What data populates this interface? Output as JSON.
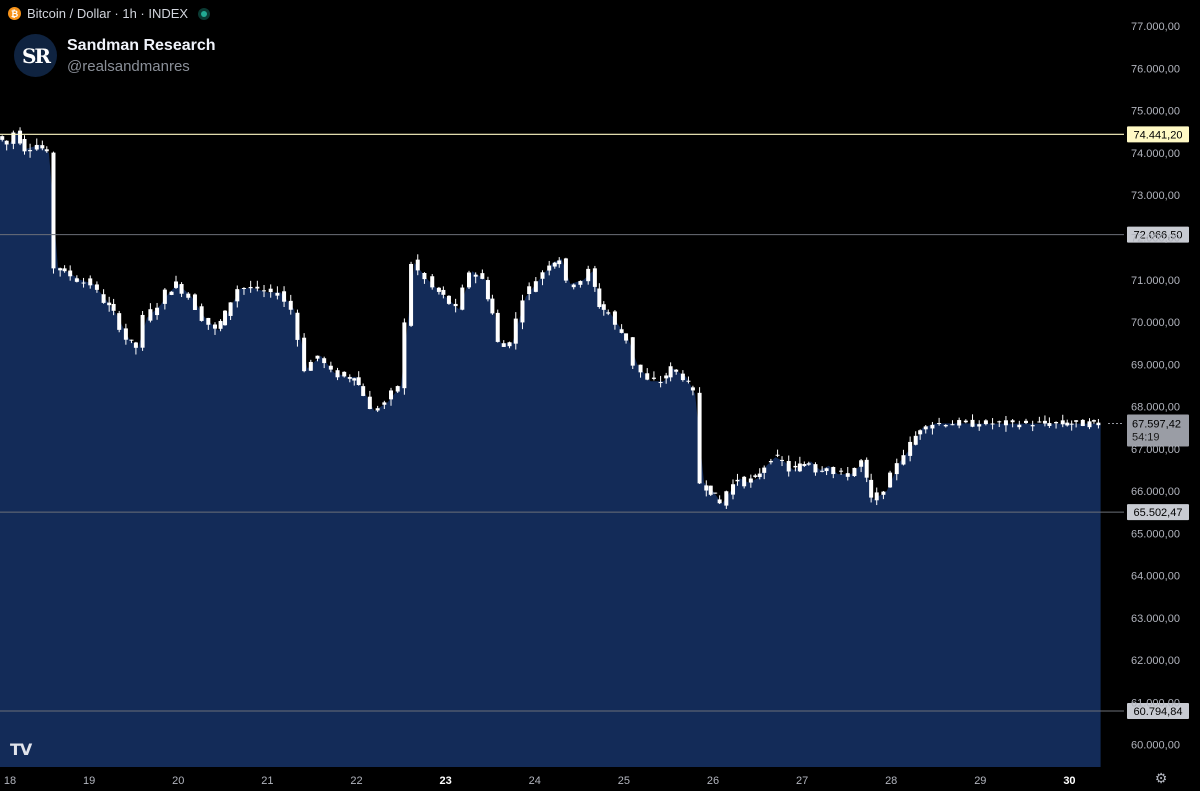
{
  "header": {
    "coin_icon": "bitcoin-icon",
    "coin_glyph": "₿",
    "title": "Bitcoin / Dollar · 1h · INDEX",
    "status_icon": "market-open-dot-icon"
  },
  "brand": {
    "logo_text": "SR",
    "name": "Sandman Research",
    "handle": "@realsandmanres"
  },
  "footer": {
    "watermark": "TV",
    "settings_icon": "gear-icon"
  },
  "colors": {
    "background": "#000000",
    "area_fill": "#132b58",
    "candle": "#ffffff",
    "resistance_line": "#fff9c4",
    "level_line": "#6b6f78",
    "axis_text": "#b2b5be"
  },
  "chart_data": {
    "type": "area",
    "description_series": "BTC/USD 1h close (area) with candlestick wicks",
    "y_axis": {
      "ticks": [
        {
          "value": 77000,
          "label": "77.000,00"
        },
        {
          "value": 76000,
          "label": "76.000,00"
        },
        {
          "value": 75000,
          "label": "75.000,00"
        },
        {
          "value": 74000,
          "label": "74.000,00"
        },
        {
          "value": 73000,
          "label": "73.000,00"
        },
        {
          "value": 72000,
          "label": "72.000,00"
        },
        {
          "value": 71000,
          "label": "71.000,00"
        },
        {
          "value": 70000,
          "label": "70.000,00"
        },
        {
          "value": 69000,
          "label": "69.000,00"
        },
        {
          "value": 68000,
          "label": "68.000,00"
        },
        {
          "value": 67000,
          "label": "67.000,00"
        },
        {
          "value": 66000,
          "label": "66.000,00"
        },
        {
          "value": 65000,
          "label": "65.000,00"
        },
        {
          "value": 64000,
          "label": "64.000,00"
        },
        {
          "value": 63000,
          "label": "63.000,00"
        },
        {
          "value": 62000,
          "label": "62.000,00"
        },
        {
          "value": 61000,
          "label": "61.000,00"
        },
        {
          "value": 60000,
          "label": "60.000,00"
        }
      ],
      "range": [
        59470,
        77620
      ]
    },
    "x_axis": {
      "ticks": [
        {
          "value": 18,
          "label": "18",
          "bold": false
        },
        {
          "value": 19,
          "label": "19",
          "bold": false
        },
        {
          "value": 20,
          "label": "20",
          "bold": false
        },
        {
          "value": 21,
          "label": "21",
          "bold": false
        },
        {
          "value": 22,
          "label": "22",
          "bold": false
        },
        {
          "value": 23,
          "label": "23",
          "bold": true
        },
        {
          "value": 24,
          "label": "24",
          "bold": false
        },
        {
          "value": 25,
          "label": "25",
          "bold": false
        },
        {
          "value": 26,
          "label": "26",
          "bold": false
        },
        {
          "value": 27,
          "label": "27",
          "bold": false
        },
        {
          "value": 28,
          "label": "28",
          "bold": false
        },
        {
          "value": 29,
          "label": "29",
          "bold": false
        },
        {
          "value": 30,
          "label": "30",
          "bold": true
        }
      ],
      "range": [
        18.0,
        30.5
      ]
    },
    "levels": [
      {
        "value": 74441.2,
        "label": "74.441,20",
        "style": "resistance"
      },
      {
        "value": 72066.5,
        "label": "72.066,50",
        "style": "level"
      },
      {
        "value": 65502.47,
        "label": "65.502,47",
        "style": "level"
      },
      {
        "value": 60794.84,
        "label": "60.794,84",
        "style": "level"
      }
    ],
    "current_price": {
      "value": 67597.42,
      "label": "67.597,42",
      "countdown": "54:19"
    },
    "series": [
      {
        "x": [
          18.0,
          18.1,
          18.2,
          18.3,
          18.45,
          18.55,
          18.65,
          18.75,
          18.9,
          19.05,
          19.2,
          19.3,
          19.45,
          19.55,
          19.65,
          19.8,
          19.9,
          20.0,
          20.15,
          20.3,
          20.45,
          20.55,
          20.7,
          20.85,
          21.0,
          21.15,
          21.3,
          21.45,
          21.6,
          21.75,
          21.9,
          22.0,
          22.1,
          22.2,
          22.35,
          22.5,
          22.65,
          22.8,
          22.9,
          23.0,
          23.15,
          23.3,
          23.45,
          23.55,
          23.62,
          23.75,
          23.9,
          24.05,
          24.2,
          24.3,
          24.4,
          24.55,
          24.65,
          24.75,
          24.85,
          24.95,
          25.05,
          25.15,
          25.3,
          25.45,
          25.55,
          25.7,
          25.8,
          25.9,
          26.0,
          26.1,
          26.2,
          26.3,
          26.4,
          26.5,
          26.6,
          26.7,
          26.8,
          26.9,
          27.0,
          27.1,
          27.2,
          27.3,
          27.4,
          27.55,
          27.7,
          27.8,
          27.95,
          28.1,
          28.25,
          28.35,
          28.5,
          28.65,
          28.8,
          28.95,
          29.1,
          29.25,
          29.4,
          29.55,
          29.7,
          29.8,
          29.9,
          29.95,
          30.0,
          30.05,
          30.1,
          30.2,
          30.3,
          30.35
        ],
        "close": [
          74400,
          74200,
          74500,
          74100,
          74200,
          74000,
          71300,
          71200,
          71000,
          70900,
          70500,
          70200,
          69600,
          69400,
          70100,
          70400,
          70700,
          70900,
          70600,
          70100,
          69800,
          70200,
          70800,
          70800,
          70700,
          70700,
          70300,
          68900,
          69200,
          68800,
          68700,
          68700,
          68300,
          67900,
          68100,
          68500,
          71400,
          71000,
          70800,
          70600,
          70300,
          71200,
          71000,
          70200,
          69500,
          69500,
          70600,
          71000,
          71400,
          71500,
          70900,
          71000,
          71200,
          70400,
          70200,
          69900,
          69600,
          69000,
          68600,
          68600,
          68900,
          68700,
          68300,
          66200,
          66000,
          65700,
          66000,
          66300,
          66200,
          66300,
          66600,
          66800,
          66700,
          66500,
          66600,
          66700,
          66500,
          66600,
          66400,
          66400,
          66700,
          65800,
          66000,
          66700,
          67100,
          67500,
          67600,
          67600,
          67600,
          67597,
          67597,
          67597,
          67597,
          67597,
          67597,
          67597,
          67597,
          67597,
          67597,
          67597,
          67597,
          67597,
          67597,
          67597
        ]
      }
    ]
  }
}
